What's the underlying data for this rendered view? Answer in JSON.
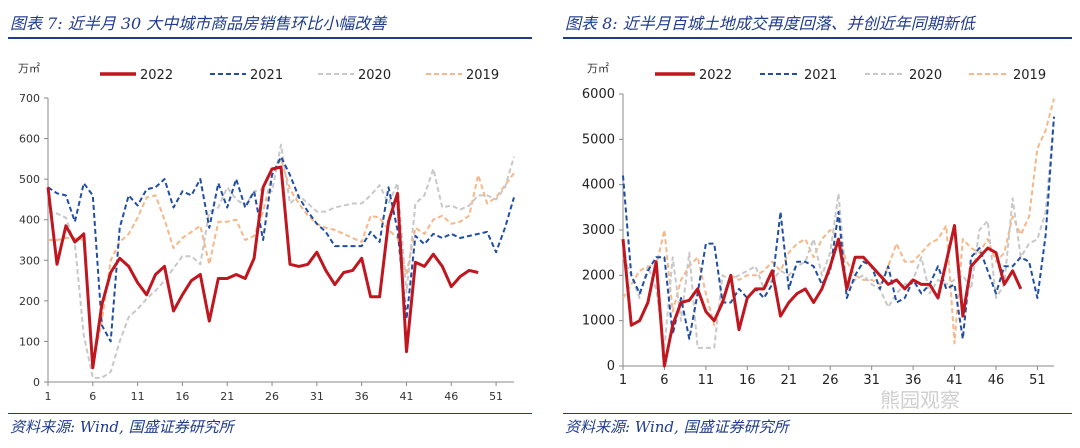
{
  "figures": [
    {
      "title": "图表 7:  近半月 30 大中城市商品房销售环比小幅改善",
      "source": "资料来源:  Wind,  国盛证券研究所",
      "unit": "万㎡"
    },
    {
      "title": "图表 8:  近半月百城土地成交再度回落、并创近年同期新低",
      "source": "资料来源:  Wind,  国盛证券研究所",
      "unit": "万㎡"
    }
  ],
  "watermark": "熊园观察",
  "series_colors": {
    "2022": "#c0161f",
    "2021": "#1f4ea3",
    "2020": "#c8c8c8",
    "2019": "#f5b88a"
  },
  "chart_data": [
    {
      "type": "line",
      "title": "近半月 30 大中城市商品房销售环比小幅改善",
      "ylabel": "万㎡",
      "ylim": [
        0,
        700
      ],
      "yticks": [
        0,
        100,
        200,
        300,
        400,
        500,
        600,
        700
      ],
      "xlim": [
        1,
        53
      ],
      "xticks": [
        1,
        6,
        11,
        16,
        21,
        26,
        31,
        36,
        41,
        46,
        51
      ],
      "series": [
        {
          "name": "2022",
          "style": "solid",
          "values": [
            480,
            290,
            385,
            345,
            365,
            35,
            190,
            270,
            305,
            285,
            245,
            215,
            265,
            285,
            175,
            215,
            250,
            265,
            150,
            255,
            255,
            265,
            255,
            305,
            480,
            525,
            530,
            290,
            285,
            290,
            320,
            275,
            240,
            270,
            275,
            305,
            210,
            210,
            395,
            465,
            75,
            295,
            285,
            315,
            285,
            235,
            260,
            275,
            270
          ]
        },
        {
          "name": "2021",
          "style": "dashed",
          "values": [
            480,
            465,
            460,
            395,
            490,
            460,
            140,
            100,
            380,
            460,
            435,
            475,
            480,
            500,
            430,
            470,
            460,
            500,
            380,
            490,
            430,
            500,
            430,
            470,
            350,
            510,
            555,
            510,
            455,
            420,
            390,
            370,
            335,
            335,
            335,
            335,
            370,
            345,
            480,
            375,
            155,
            360,
            340,
            365,
            355,
            365,
            355,
            360,
            365,
            370,
            320,
            380,
            455
          ]
        },
        {
          "name": "2020",
          "style": "dashed",
          "values": [
            420,
            415,
            405,
            340,
            115,
            10,
            10,
            25,
            100,
            160,
            180,
            205,
            225,
            250,
            280,
            310,
            310,
            290,
            420,
            430,
            480,
            450,
            435,
            470,
            475,
            470,
            585,
            440,
            460,
            440,
            420,
            420,
            430,
            435,
            440,
            440,
            460,
            485,
            440,
            490,
            220,
            440,
            460,
            525,
            430,
            435,
            425,
            435,
            460,
            460,
            450,
            480,
            555
          ]
        },
        {
          "name": "2019",
          "style": "dashed",
          "values": [
            350,
            350,
            355,
            355,
            350,
            45,
            150,
            300,
            345,
            365,
            405,
            455,
            460,
            400,
            330,
            355,
            370,
            385,
            290,
            395,
            395,
            400,
            350,
            360,
            420,
            510,
            550,
            475,
            440,
            410,
            390,
            380,
            375,
            365,
            355,
            345,
            410,
            405,
            375,
            355,
            265,
            380,
            365,
            400,
            410,
            390,
            395,
            410,
            510,
            440,
            455,
            485,
            515
          ]
        }
      ]
    },
    {
      "type": "line",
      "title": "近半月百城土地成交再度回落、并创近年同期新低",
      "ylabel": "万㎡",
      "ylim": [
        0,
        6000
      ],
      "yticks": [
        0,
        1000,
        2000,
        3000,
        4000,
        5000,
        6000
      ],
      "xlim": [
        1,
        53
      ],
      "xticks": [
        1,
        6,
        11,
        16,
        21,
        26,
        31,
        36,
        41,
        46,
        51
      ],
      "series": [
        {
          "name": "2022",
          "style": "solid",
          "values": [
            2800,
            900,
            1000,
            1400,
            2300,
            0,
            900,
            1400,
            1450,
            1700,
            1200,
            1000,
            1400,
            2000,
            800,
            1500,
            1700,
            1700,
            2100,
            1100,
            1400,
            1600,
            1700,
            1400,
            1700,
            2200,
            2800,
            1700,
            2400,
            2400,
            2200,
            2000,
            1800,
            1900,
            1700,
            1900,
            1800,
            1800,
            1500,
            2300,
            3100,
            1100,
            2200,
            2400,
            2600,
            2500,
            1800,
            2100,
            1700
          ]
        },
        {
          "name": "2021",
          "style": "dashed",
          "values": [
            4200,
            2000,
            1600,
            2100,
            2400,
            2400,
            700,
            1500,
            600,
            1600,
            2700,
            2700,
            1400,
            1400,
            1700,
            1500,
            1700,
            1500,
            1800,
            3400,
            1700,
            2300,
            2300,
            2200,
            1800,
            2100,
            3400,
            1500,
            2000,
            2300,
            2200,
            1700,
            2200,
            1400,
            1500,
            1900,
            1600,
            1800,
            2200,
            1700,
            1800,
            600,
            2400,
            2600,
            2100,
            1600,
            2200,
            2200,
            2400,
            2300,
            1500,
            2900,
            5500
          ]
        },
        {
          "name": "2020",
          "style": "dashed",
          "values": [
            2400,
            2000,
            1500,
            2200,
            1700,
            400,
            2400,
            1000,
            2500,
            400,
            400,
            400,
            2000,
            1900,
            2000,
            2100,
            2200,
            1700,
            1900,
            2100,
            2000,
            2200,
            2300,
            2800,
            2000,
            2500,
            3800,
            1700,
            1900,
            2000,
            1800,
            1700,
            1300,
            1600,
            1800,
            1900,
            2400,
            1600,
            1900,
            1800,
            1900,
            2000,
            1700,
            3000,
            3200,
            1500,
            1800,
            3700,
            2400,
            2700,
            2800,
            3400,
            5500
          ]
        },
        {
          "name": "2019",
          "style": "dashed",
          "values": [
            1500,
            1800,
            2100,
            2200,
            2200,
            3000,
            1200,
            1900,
            2200,
            2400,
            1600,
            900,
            1500,
            2000,
            1900,
            2000,
            2000,
            2100,
            2300,
            2100,
            2500,
            2700,
            2800,
            2400,
            2800,
            3000,
            2800,
            2300,
            2000,
            1900,
            1900,
            1800,
            2200,
            2700,
            2300,
            2300,
            2500,
            2700,
            2800,
            3100,
            500,
            2800,
            2600,
            2500,
            2800,
            2300,
            2500,
            3300,
            2900,
            3300,
            4800,
            5200,
            5900
          ]
        }
      ]
    }
  ]
}
